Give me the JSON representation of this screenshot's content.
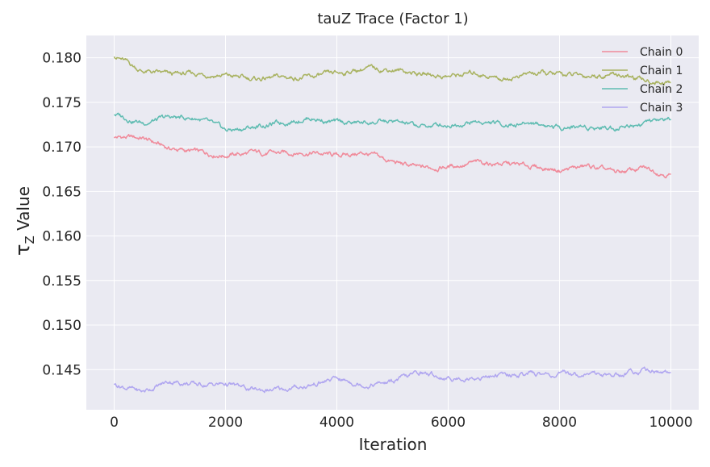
{
  "chart_data": {
    "type": "line",
    "title": "tauZ Trace (Factor 1)",
    "xlabel": "Iteration",
    "ylabel_symbol": "τ",
    "ylabel_subscript": "Z",
    "ylabel_suffix": " Value",
    "xlim": [
      -500,
      10500
    ],
    "ylim": [
      0.1405,
      0.1825
    ],
    "x_ticks": [
      0,
      2000,
      4000,
      6000,
      8000,
      10000
    ],
    "y_ticks": [
      0.145,
      0.15,
      0.155,
      0.16,
      0.165,
      0.17,
      0.175,
      0.18
    ],
    "y_tick_labels": [
      "0.145",
      "0.150",
      "0.155",
      "0.160",
      "0.165",
      "0.170",
      "0.175",
      "0.180"
    ],
    "grid": true,
    "legend_position": "top-right",
    "x": [
      0,
      500,
      1000,
      1500,
      2000,
      2500,
      3000,
      3500,
      4000,
      4500,
      5000,
      5500,
      6000,
      6500,
      7000,
      7500,
      8000,
      8500,
      9000,
      9500,
      10000
    ],
    "series": [
      {
        "name": "Chain 0",
        "color": "#f08a9a",
        "values": [
          0.1711,
          0.171,
          0.1698,
          0.1694,
          0.1691,
          0.1693,
          0.1693,
          0.1694,
          0.169,
          0.1693,
          0.1683,
          0.1676,
          0.1678,
          0.1682,
          0.1681,
          0.1678,
          0.1674,
          0.1678,
          0.1671,
          0.1676,
          0.1669
        ]
      },
      {
        "name": "Chain 1",
        "color": "#a8b25f",
        "values": [
          0.1803,
          0.1785,
          0.1781,
          0.1782,
          0.178,
          0.1776,
          0.1778,
          0.1778,
          0.1782,
          0.1788,
          0.1787,
          0.1782,
          0.1779,
          0.1783,
          0.1776,
          0.1783,
          0.1781,
          0.178,
          0.1782,
          0.1774,
          0.1772
        ]
      },
      {
        "name": "Chain 2",
        "color": "#5fbcb2",
        "values": [
          0.1737,
          0.1727,
          0.1733,
          0.1732,
          0.1718,
          0.1722,
          0.1727,
          0.1733,
          0.1727,
          0.1727,
          0.1728,
          0.1723,
          0.1725,
          0.1728,
          0.1725,
          0.1727,
          0.1722,
          0.1723,
          0.1722,
          0.1727,
          0.1731
        ]
      },
      {
        "name": "Chain 3",
        "color": "#b0a6f0",
        "values": [
          0.1434,
          0.1425,
          0.1437,
          0.1433,
          0.1434,
          0.1427,
          0.1427,
          0.1432,
          0.144,
          0.1433,
          0.1436,
          0.1447,
          0.144,
          0.1441,
          0.1444,
          0.1445,
          0.1444,
          0.1446,
          0.1444,
          0.145,
          0.1447
        ]
      }
    ]
  }
}
